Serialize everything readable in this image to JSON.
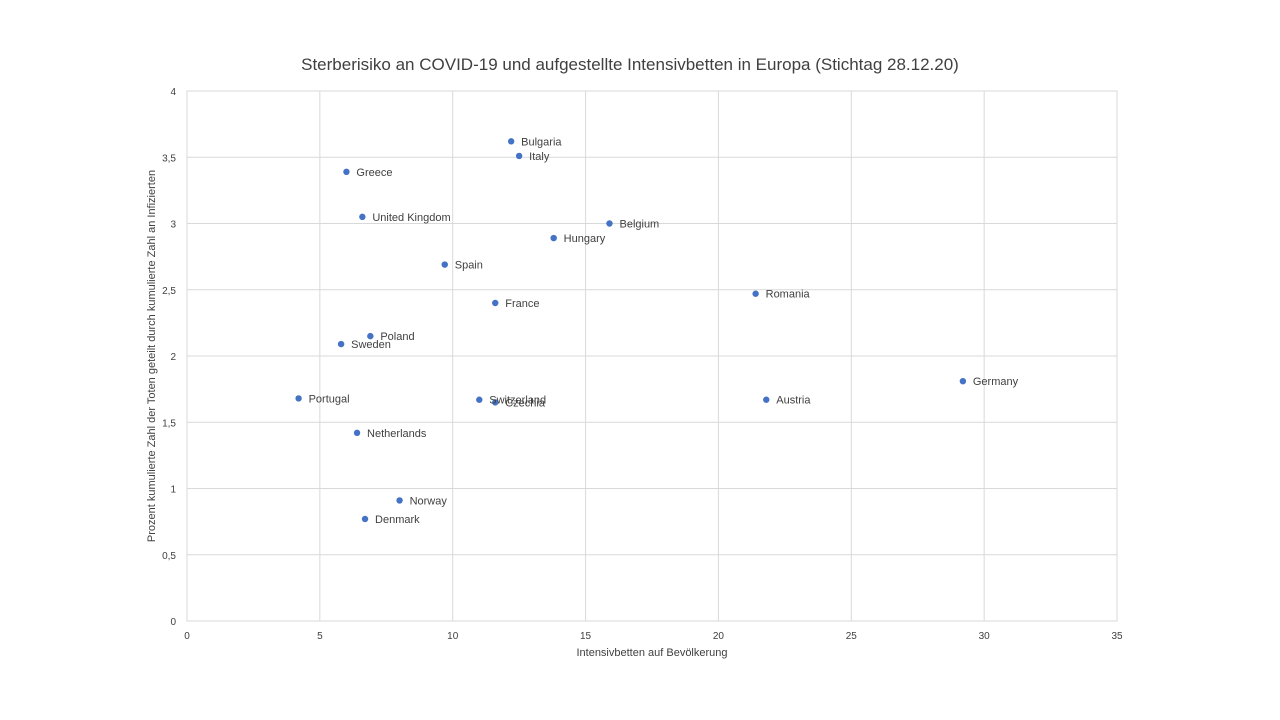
{
  "chart_data": {
    "type": "scatter",
    "title": "Sterberisiko an COVID-19 und aufgestellte Intensivbetten in Europa (Stichtag 28.12.20)",
    "xlabel": "Intensivbetten auf Bevölkerung",
    "ylabel": "Prozent kumulierte Zahl der Toten geteilt durch kumulierte Zahl an Infizierten",
    "xlim": [
      0,
      35
    ],
    "ylim": [
      0,
      4
    ],
    "x_ticks": [
      0,
      5,
      10,
      15,
      20,
      25,
      30,
      35
    ],
    "y_ticks": [
      0,
      0.5,
      1,
      1.5,
      2,
      2.5,
      3,
      3.5,
      4
    ],
    "x_tick_labels": [
      "0",
      "5",
      "10",
      "15",
      "20",
      "25",
      "30",
      "35"
    ],
    "y_tick_labels": [
      "0",
      "0,5",
      "1",
      "1,5",
      "2",
      "2,5",
      "3",
      "3,5",
      "4"
    ],
    "grid": true,
    "marker_color": "#4472c4",
    "points": [
      {
        "label": "Bulgaria",
        "x": 12.2,
        "y": 3.62
      },
      {
        "label": "Italy",
        "x": 12.5,
        "y": 3.51
      },
      {
        "label": "Greece",
        "x": 6.0,
        "y": 3.39
      },
      {
        "label": "United Kingdom",
        "x": 6.6,
        "y": 3.05
      },
      {
        "label": "Belgium",
        "x": 15.9,
        "y": 3.0
      },
      {
        "label": "Hungary",
        "x": 13.8,
        "y": 2.89
      },
      {
        "label": "Spain",
        "x": 9.7,
        "y": 2.69
      },
      {
        "label": "Romania",
        "x": 21.4,
        "y": 2.47
      },
      {
        "label": "France",
        "x": 11.6,
        "y": 2.4
      },
      {
        "label": "Poland",
        "x": 6.9,
        "y": 2.15
      },
      {
        "label": "Sweden",
        "x": 5.8,
        "y": 2.09
      },
      {
        "label": "Germany",
        "x": 29.2,
        "y": 1.81
      },
      {
        "label": "Portugal",
        "x": 4.2,
        "y": 1.68
      },
      {
        "label": "Switzerland",
        "x": 11.0,
        "y": 1.67
      },
      {
        "label": "Czechia",
        "x": 11.6,
        "y": 1.65
      },
      {
        "label": "Austria",
        "x": 21.8,
        "y": 1.67
      },
      {
        "label": "Netherlands",
        "x": 6.4,
        "y": 1.42
      },
      {
        "label": "Norway",
        "x": 8.0,
        "y": 0.91
      },
      {
        "label": "Denmark",
        "x": 6.7,
        "y": 0.77
      }
    ]
  }
}
